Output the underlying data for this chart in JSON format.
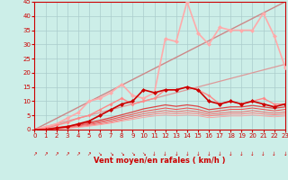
{
  "xlabel": "Vent moyen/en rafales ( km/h )",
  "bg_color": "#cceee8",
  "grid_color": "#aacccc",
  "x": [
    0,
    1,
    2,
    3,
    4,
    5,
    6,
    7,
    8,
    9,
    10,
    11,
    12,
    13,
    14,
    15,
    16,
    17,
    18,
    19,
    20,
    21,
    22,
    23
  ],
  "ylim": [
    0,
    45
  ],
  "xlim": [
    0,
    23
  ],
  "yticks": [
    0,
    5,
    10,
    15,
    20,
    25,
    30,
    35,
    40,
    45
  ],
  "xticks": [
    0,
    1,
    2,
    3,
    4,
    5,
    6,
    7,
    8,
    9,
    10,
    11,
    12,
    13,
    14,
    15,
    16,
    17,
    18,
    19,
    20,
    21,
    22,
    23
  ],
  "line_trend_upper": {
    "y": [
      0,
      1.96,
      3.91,
      5.87,
      7.83,
      9.78,
      11.74,
      13.7,
      15.65,
      17.61,
      19.57,
      21.52,
      23.48,
      25.43,
      27.39,
      29.35,
      31.3,
      33.26,
      35.22,
      37.17,
      39.13,
      41.09,
      43.04,
      45.0
    ],
    "color": "#cc8888",
    "lw": 1.0
  },
  "line_trend_lower": {
    "y": [
      0,
      1.0,
      2.0,
      3.0,
      4.0,
      5.0,
      6.0,
      7.0,
      8.0,
      9.0,
      10.0,
      11.0,
      12.0,
      13.0,
      14.0,
      15.0,
      16.0,
      17.0,
      18.0,
      19.0,
      20.0,
      21.0,
      22.0,
      23.0
    ],
    "color": "#dd9999",
    "lw": 0.9
  },
  "line_light_pink": {
    "y": [
      0,
      1,
      2,
      4,
      6,
      10,
      11,
      13,
      16,
      12,
      11,
      13,
      32,
      31,
      45,
      34,
      30,
      36,
      35,
      35,
      35,
      41,
      33,
      22
    ],
    "color": "#ffaaaa",
    "lw": 1.2,
    "marker": "D",
    "ms": 2.5
  },
  "line_medium_pink": {
    "y": [
      0,
      0.5,
      1.5,
      2.5,
      4,
      5,
      7,
      9,
      11,
      9,
      10,
      11,
      14,
      14,
      15,
      14,
      12,
      9,
      10,
      9,
      10,
      11,
      9,
      9
    ],
    "color": "#ff8888",
    "lw": 1.0,
    "marker": "D",
    "ms": 2.0
  },
  "line_dark_red": {
    "y": [
      0,
      0,
      0.5,
      1,
      2,
      3,
      5,
      7,
      9,
      10,
      14,
      13,
      14,
      14,
      15,
      14,
      10,
      9,
      10,
      9,
      10,
      9,
      8,
      9
    ],
    "color": "#cc0000",
    "lw": 1.2,
    "marker": "D",
    "ms": 2.5
  },
  "lines_thin": [
    {
      "y": [
        0,
        0.3,
        0.7,
        1.2,
        1.8,
        2.5,
        3.3,
        4.2,
        5.2,
        6.2,
        7.3,
        8.0,
        8.7,
        8.2,
        8.7,
        8.2,
        7.0,
        7.5,
        8.0,
        8.0,
        8.5,
        8.0,
        7.5,
        8.0
      ],
      "color": "#dd4444",
      "lw": 0.9
    },
    {
      "y": [
        0,
        0.2,
        0.5,
        1.0,
        1.5,
        2.1,
        2.8,
        3.6,
        4.5,
        5.4,
        6.4,
        7.0,
        7.6,
        7.1,
        7.6,
        7.1,
        6.1,
        6.6,
        7.1,
        7.1,
        7.6,
        7.1,
        6.6,
        7.1
      ],
      "color": "#ee5555",
      "lw": 0.8
    },
    {
      "y": [
        0,
        0.15,
        0.4,
        0.8,
        1.3,
        1.8,
        2.4,
        3.1,
        3.9,
        4.7,
        5.6,
        6.2,
        6.7,
        6.3,
        6.7,
        6.3,
        5.4,
        5.8,
        6.2,
        6.2,
        6.7,
        6.2,
        5.8,
        6.2
      ],
      "color": "#ee6666",
      "lw": 0.7
    },
    {
      "y": [
        0,
        0.1,
        0.3,
        0.6,
        1.0,
        1.5,
        2.0,
        2.6,
        3.4,
        4.1,
        4.9,
        5.5,
        5.9,
        5.6,
        5.9,
        5.6,
        4.8,
        5.2,
        5.5,
        5.5,
        5.9,
        5.5,
        5.2,
        5.5
      ],
      "color": "#ff7777",
      "lw": 0.7
    },
    {
      "y": [
        0,
        0.05,
        0.2,
        0.45,
        0.8,
        1.2,
        1.7,
        2.3,
        3.0,
        3.6,
        4.3,
        4.8,
        5.2,
        4.9,
        5.2,
        4.9,
        4.2,
        4.5,
        4.8,
        4.8,
        5.2,
        4.8,
        4.5,
        4.8
      ],
      "color": "#ff9999",
      "lw": 0.6
    }
  ],
  "wind_dirs": [
    "↗",
    "↗",
    "↗",
    "↗",
    "↗",
    "↗",
    "↘",
    "↘",
    "↘",
    "↘",
    "↘",
    "↓",
    "↓",
    "↓",
    "↓",
    "↓",
    "↓",
    "↓",
    "↓",
    "↓",
    "↓",
    "↓",
    "↓",
    "↓"
  ]
}
